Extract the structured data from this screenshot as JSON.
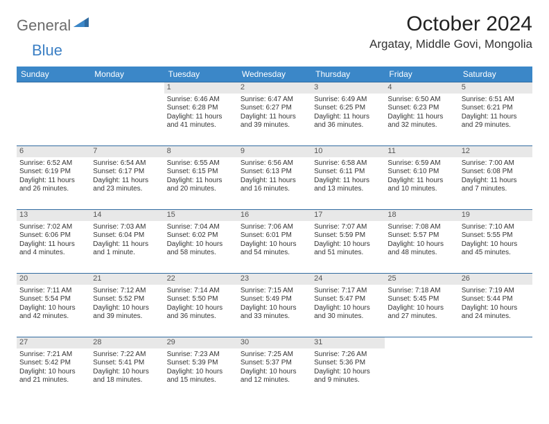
{
  "brand": {
    "general": "General",
    "blue": "Blue"
  },
  "title": "October 2024",
  "location": "Argatay, Middle Govi, Mongolia",
  "header_bg": "#3b87c8",
  "header_fg": "#ffffff",
  "rule_color": "#2f6aa0",
  "daynum_bg": "#e8e8e8",
  "weekdays": [
    "Sunday",
    "Monday",
    "Tuesday",
    "Wednesday",
    "Thursday",
    "Friday",
    "Saturday"
  ],
  "leading_blanks": 2,
  "days": [
    {
      "n": 1,
      "sr": "6:46 AM",
      "ss": "6:28 PM",
      "dl": "11 hours and 41 minutes."
    },
    {
      "n": 2,
      "sr": "6:47 AM",
      "ss": "6:27 PM",
      "dl": "11 hours and 39 minutes."
    },
    {
      "n": 3,
      "sr": "6:49 AM",
      "ss": "6:25 PM",
      "dl": "11 hours and 36 minutes."
    },
    {
      "n": 4,
      "sr": "6:50 AM",
      "ss": "6:23 PM",
      "dl": "11 hours and 32 minutes."
    },
    {
      "n": 5,
      "sr": "6:51 AM",
      "ss": "6:21 PM",
      "dl": "11 hours and 29 minutes."
    },
    {
      "n": 6,
      "sr": "6:52 AM",
      "ss": "6:19 PM",
      "dl": "11 hours and 26 minutes."
    },
    {
      "n": 7,
      "sr": "6:54 AM",
      "ss": "6:17 PM",
      "dl": "11 hours and 23 minutes."
    },
    {
      "n": 8,
      "sr": "6:55 AM",
      "ss": "6:15 PM",
      "dl": "11 hours and 20 minutes."
    },
    {
      "n": 9,
      "sr": "6:56 AM",
      "ss": "6:13 PM",
      "dl": "11 hours and 16 minutes."
    },
    {
      "n": 10,
      "sr": "6:58 AM",
      "ss": "6:11 PM",
      "dl": "11 hours and 13 minutes."
    },
    {
      "n": 11,
      "sr": "6:59 AM",
      "ss": "6:10 PM",
      "dl": "11 hours and 10 minutes."
    },
    {
      "n": 12,
      "sr": "7:00 AM",
      "ss": "6:08 PM",
      "dl": "11 hours and 7 minutes."
    },
    {
      "n": 13,
      "sr": "7:02 AM",
      "ss": "6:06 PM",
      "dl": "11 hours and 4 minutes."
    },
    {
      "n": 14,
      "sr": "7:03 AM",
      "ss": "6:04 PM",
      "dl": "11 hours and 1 minute."
    },
    {
      "n": 15,
      "sr": "7:04 AM",
      "ss": "6:02 PM",
      "dl": "10 hours and 58 minutes."
    },
    {
      "n": 16,
      "sr": "7:06 AM",
      "ss": "6:01 PM",
      "dl": "10 hours and 54 minutes."
    },
    {
      "n": 17,
      "sr": "7:07 AM",
      "ss": "5:59 PM",
      "dl": "10 hours and 51 minutes."
    },
    {
      "n": 18,
      "sr": "7:08 AM",
      "ss": "5:57 PM",
      "dl": "10 hours and 48 minutes."
    },
    {
      "n": 19,
      "sr": "7:10 AM",
      "ss": "5:55 PM",
      "dl": "10 hours and 45 minutes."
    },
    {
      "n": 20,
      "sr": "7:11 AM",
      "ss": "5:54 PM",
      "dl": "10 hours and 42 minutes."
    },
    {
      "n": 21,
      "sr": "7:12 AM",
      "ss": "5:52 PM",
      "dl": "10 hours and 39 minutes."
    },
    {
      "n": 22,
      "sr": "7:14 AM",
      "ss": "5:50 PM",
      "dl": "10 hours and 36 minutes."
    },
    {
      "n": 23,
      "sr": "7:15 AM",
      "ss": "5:49 PM",
      "dl": "10 hours and 33 minutes."
    },
    {
      "n": 24,
      "sr": "7:17 AM",
      "ss": "5:47 PM",
      "dl": "10 hours and 30 minutes."
    },
    {
      "n": 25,
      "sr": "7:18 AM",
      "ss": "5:45 PM",
      "dl": "10 hours and 27 minutes."
    },
    {
      "n": 26,
      "sr": "7:19 AM",
      "ss": "5:44 PM",
      "dl": "10 hours and 24 minutes."
    },
    {
      "n": 27,
      "sr": "7:21 AM",
      "ss": "5:42 PM",
      "dl": "10 hours and 21 minutes."
    },
    {
      "n": 28,
      "sr": "7:22 AM",
      "ss": "5:41 PM",
      "dl": "10 hours and 18 minutes."
    },
    {
      "n": 29,
      "sr": "7:23 AM",
      "ss": "5:39 PM",
      "dl": "10 hours and 15 minutes."
    },
    {
      "n": 30,
      "sr": "7:25 AM",
      "ss": "5:37 PM",
      "dl": "10 hours and 12 minutes."
    },
    {
      "n": 31,
      "sr": "7:26 AM",
      "ss": "5:36 PM",
      "dl": "10 hours and 9 minutes."
    }
  ],
  "labels": {
    "sunrise": "Sunrise:",
    "sunset": "Sunset:",
    "daylight": "Daylight:"
  }
}
